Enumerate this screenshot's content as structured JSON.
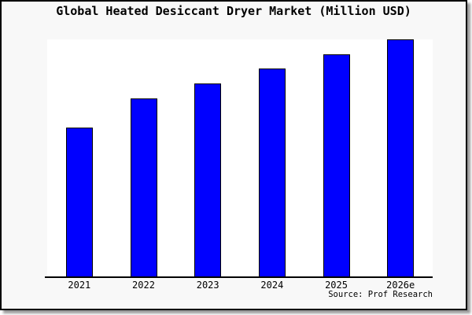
{
  "window": {
    "background": "#f8f8f8",
    "border_color": "#000000",
    "shadow_color": "#999999",
    "text_color": "#000000"
  },
  "chart_data": {
    "type": "bar",
    "title": "Global Heated Desiccant Dryer Market (Million USD)",
    "source": "Source: Prof Research",
    "categories": [
      "2021",
      "2022",
      "2023",
      "2024",
      "2025",
      "2026e"
    ],
    "values": [
      190,
      227,
      246,
      265,
      283,
      302
    ],
    "value_note": "no y-axis or numeric labels visible; values are relative bar heights in screen pixels",
    "ylim": [
      0,
      302
    ],
    "xlabel": "",
    "ylabel": "",
    "grid": false,
    "legend": false,
    "y_axis_visible": false,
    "bar_color": "#0000ff",
    "bar_border_color": "#000000",
    "plot_background": "#ffffff"
  }
}
